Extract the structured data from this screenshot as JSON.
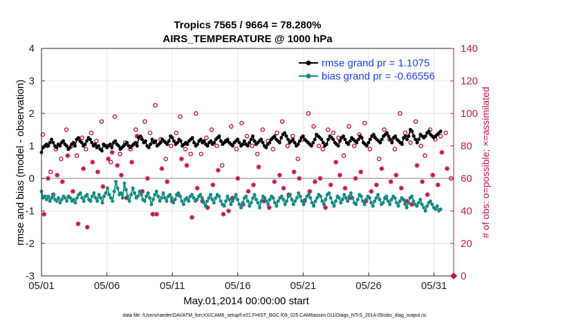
{
  "chart_data": {
    "type": "line",
    "title": "Tropics 7565 / 9664 = 78.280%",
    "subtitle": "AIRS_TEMPERATURE @ 1000 hPa",
    "xlabel": "May.01,2014 00:00:00 start",
    "ylabel": "rmse and bias (model - observation)",
    "ylabel_right": "# of obs: o=possible; ×=assimilated",
    "ylim": [
      -3,
      4
    ],
    "ylim_right": [
      0,
      140
    ],
    "xlim": [
      0,
      31.5
    ],
    "x_tick_labels": [
      "05/01",
      "05/06",
      "05/11",
      "05/16",
      "05/21",
      "05/26",
      "05/31"
    ],
    "x_tick_positions": [
      0,
      5,
      10,
      15,
      20,
      25,
      30
    ],
    "y_tick_labels": [
      "-3",
      "-2",
      "-1",
      "0",
      "1",
      "2",
      "3",
      "4"
    ],
    "y_ticks_right": [
      "0",
      "20",
      "40",
      "60",
      "80",
      "100",
      "120",
      "140"
    ],
    "grid": true,
    "legend_position": "top-right",
    "footnote": "data file: /Users/raeder/DAI/ATM_forcXX/CAM6_setup/f.e21.FHIST_BGC.f09_025.CAM6assim.011/Diags_NTrS_2014-05/obs_diag_output.nc",
    "colors": {
      "rmse": "#000000",
      "bias": "#138a80",
      "obs": "#c0134f",
      "legend_text": "#1f3fdc",
      "zero_line": "#999999"
    },
    "series": [
      {
        "name": "rmse grand pr = 1.1075",
        "style": "line-dot",
        "values": [
          0.8,
          0.95,
          1.0,
          1.05,
          1.0,
          1.1,
          1.2,
          1.1,
          1.0,
          0.95,
          1.05,
          1.0,
          1.1,
          1.15,
          1.05,
          1.0,
          0.9,
          0.95,
          1.05,
          1.1,
          1.0,
          1.2,
          1.25,
          1.15,
          1.1,
          1.0,
          1.05,
          1.15,
          1.25,
          1.2,
          1.1,
          1.0,
          1.05,
          0.95,
          1.0,
          0.9,
          0.85,
          1.05,
          1.0,
          0.95,
          1.0,
          1.05,
          0.95,
          1.1,
          1.15,
          1.05,
          1.0,
          0.9,
          0.95,
          1.0,
          1.05,
          1.1,
          1.0,
          0.95,
          1.0,
          1.05,
          1.1,
          1.0,
          1.25,
          1.3,
          1.2,
          1.1,
          1.15,
          1.0,
          0.95,
          1.05,
          1.2,
          1.1,
          1.15,
          1.0,
          1.05,
          1.1,
          1.2,
          1.15,
          1.1,
          1.05,
          1.15,
          1.3,
          1.25,
          1.15,
          1.05,
          1.1,
          1.2,
          1.15,
          1.0,
          1.05,
          1.1,
          1.05,
          1.15,
          1.2,
          1.25,
          1.1,
          1.0,
          1.05,
          1.15,
          1.2,
          1.1,
          1.15,
          1.05,
          1.0,
          1.1,
          1.15,
          1.05,
          1.1,
          1.2,
          1.25,
          1.3,
          1.15,
          1.05,
          1.1,
          1.15,
          1.2,
          1.1,
          1.05,
          1.0,
          1.1,
          1.15,
          1.2,
          1.1,
          1.0,
          1.05,
          1.15,
          1.05,
          1.0,
          1.1,
          1.2,
          1.3,
          1.15,
          1.05,
          1.1,
          1.15,
          1.2,
          1.1,
          1.0,
          0.95,
          1.05,
          1.1,
          1.2,
          1.25,
          1.3,
          1.2,
          1.15,
          1.1,
          1.25,
          1.35,
          1.4,
          1.3,
          1.2,
          1.1,
          1.15,
          1.2,
          1.1,
          1.0,
          1.05,
          1.15,
          1.25,
          1.3,
          1.2,
          1.15,
          1.1,
          1.05,
          1.0,
          1.1,
          1.2,
          1.35,
          1.3,
          1.25,
          1.2,
          1.1,
          1.0,
          1.05,
          1.2,
          1.3,
          1.25,
          1.2,
          1.1,
          1.05,
          1.0,
          1.15,
          1.25,
          1.3,
          1.2,
          1.1,
          1.05,
          1.15,
          1.25,
          1.2,
          1.15,
          1.1,
          1.2,
          1.3,
          1.25,
          1.1,
          1.05,
          1.0,
          1.1,
          1.2,
          1.3,
          1.35,
          1.25,
          1.2,
          1.15,
          1.1,
          1.2,
          1.3,
          1.35,
          1.4,
          1.3,
          1.2,
          1.1,
          1.25,
          1.3,
          1.2,
          1.15,
          1.1,
          1.05,
          1.25,
          1.3,
          1.2,
          1.3,
          1.5,
          1.45,
          1.3,
          1.2,
          1.1,
          1.2,
          1.35,
          1.3,
          1.25,
          1.3,
          1.4,
          1.45,
          1.35,
          1.3,
          1.25,
          1.3,
          1.35,
          1.4,
          1.45
        ]
      },
      {
        "name": "bias grand pr = -0.66556",
        "style": "line-dot",
        "values": [
          -0.4,
          -0.6,
          -0.55,
          -0.65,
          -0.55,
          -0.7,
          -0.6,
          -0.5,
          -0.65,
          -0.7,
          -0.6,
          -0.75,
          -0.65,
          -0.55,
          -0.6,
          -0.7,
          -0.55,
          -0.6,
          -0.7,
          -0.65,
          -0.75,
          -0.6,
          -0.5,
          -0.45,
          -0.6,
          -0.7,
          -0.55,
          -0.5,
          -0.65,
          -0.7,
          -0.55,
          -0.45,
          -0.6,
          -0.7,
          -0.5,
          -0.6,
          -0.75,
          -0.55,
          -0.45,
          -0.3,
          -0.5,
          -0.6,
          -0.7,
          -0.4,
          -0.1,
          -0.3,
          -0.5,
          -0.45,
          -0.6,
          -0.15,
          -0.35,
          -0.55,
          -0.7,
          -0.5,
          -0.3,
          -0.45,
          -0.6,
          -0.55,
          -0.4,
          -0.5,
          -0.65,
          -0.7,
          -0.55,
          -0.45,
          -0.6,
          -0.8,
          -0.65,
          -0.5,
          -0.4,
          -0.55,
          -0.7,
          -0.6,
          -0.45,
          -0.6,
          -0.7,
          -0.55,
          -0.5,
          -0.6,
          -0.75,
          -0.65,
          -0.5,
          -0.45,
          -0.55,
          -0.7,
          -0.8,
          -0.65,
          -0.6,
          -0.7,
          -0.55,
          -0.5,
          -0.6,
          -0.7,
          -0.65,
          -0.55,
          -0.5,
          -0.6,
          -0.75,
          -0.85,
          -0.7,
          -0.6,
          -0.5,
          -0.65,
          -0.75,
          -0.6,
          -0.5,
          -0.55,
          -0.7,
          -0.8,
          -0.85,
          -0.7,
          -0.55,
          -0.65,
          -0.8,
          -0.7,
          -0.6,
          -0.5,
          -0.65,
          -0.8,
          -0.9,
          -0.75,
          -0.6,
          -0.55,
          -0.7,
          -0.85,
          -0.75,
          -0.6,
          -0.5,
          -0.65,
          -0.75,
          -0.9,
          -0.7,
          -0.55,
          -0.6,
          -0.7,
          -0.8,
          -0.65,
          -0.55,
          -0.6,
          -0.75,
          -0.85,
          -0.7,
          -0.6,
          -0.55,
          -0.65,
          -0.8,
          -0.7,
          -0.55,
          -0.5,
          -0.65,
          -0.8,
          -0.7,
          -0.6,
          -0.45,
          -0.55,
          -0.7,
          -0.8,
          -0.65,
          -0.55,
          -0.5,
          -0.6,
          -0.75,
          -0.85,
          -0.7,
          -0.6,
          -0.5,
          -0.55,
          -0.7,
          -0.8,
          -0.65,
          -0.5,
          -0.45,
          -0.6,
          -0.75,
          -0.85,
          -0.7,
          -0.55,
          -0.6,
          -0.75,
          -0.65,
          -0.5,
          -0.6,
          -0.7,
          -0.55,
          -0.45,
          -0.6,
          -0.75,
          -0.8,
          -0.65,
          -0.5,
          -0.55,
          -0.7,
          -0.8,
          -0.65,
          -0.55,
          -0.6,
          -0.75,
          -0.85,
          -0.7,
          -0.6,
          -0.5,
          -0.65,
          -0.8,
          -0.75,
          -0.6,
          -0.55,
          -0.7,
          -0.8,
          -0.65,
          -0.55,
          -0.6,
          -0.75,
          -0.85,
          -0.7,
          -0.6,
          -0.65,
          -0.8,
          -0.9,
          -0.75,
          -0.6,
          -0.55,
          -0.7,
          -0.8,
          -0.85,
          -0.75,
          -0.65,
          -0.8,
          -0.9,
          -1.0,
          -0.85,
          -0.75,
          -0.7,
          -0.8,
          -0.9,
          -0.95,
          -0.85,
          -1.0,
          -0.95
        ]
      },
      {
        "name": "possible obs",
        "style": "circle",
        "axis": "right",
        "x": [
          0.1,
          0.4,
          0.7,
          1.1,
          1.5,
          1.9,
          2.3,
          2.7,
          3.1,
          3.4,
          3.8,
          4.2,
          4.6,
          5.0,
          5.3,
          5.6,
          6.0,
          6.4,
          6.8,
          7.2,
          7.6,
          7.9,
          8.3,
          8.7,
          9.1,
          9.5,
          9.9,
          10.3,
          10.6,
          11.0,
          11.4,
          11.8,
          12.2,
          12.6,
          13.0,
          13.4,
          13.8,
          14.1,
          14.5,
          14.9,
          15.3,
          15.7,
          16.1,
          16.5,
          16.9,
          17.3,
          17.7,
          18.0,
          18.4,
          18.8,
          19.2,
          19.6,
          20.0,
          20.4,
          20.8,
          21.2,
          21.5,
          21.9,
          22.3,
          22.7,
          23.1,
          23.5,
          23.9,
          24.3,
          24.7,
          25.1,
          25.4,
          25.8,
          26.2,
          26.6,
          27.0,
          27.4,
          27.8,
          28.2,
          28.6,
          29.0,
          29.3,
          29.7,
          30.1,
          30.5,
          30.9,
          31.3
        ],
        "values": [
          87,
          80,
          64,
          78,
          72,
          90,
          80,
          74,
          85,
          78,
          88,
          83,
          95,
          80,
          70,
          98,
          75,
          82,
          78,
          90,
          85,
          95,
          88,
          105,
          84,
          72,
          80,
          88,
          98,
          78,
          75,
          100,
          75,
          85,
          90,
          80,
          68,
          83,
          92,
          78,
          94,
          86,
          80,
          75,
          90,
          83,
          78,
          88,
          95,
          80,
          86,
          72,
          84,
          100,
          92,
          80,
          78,
          90,
          88,
          85,
          74,
          92,
          80,
          87,
          94,
          78,
          86,
          72,
          90,
          84,
          78,
          100,
          88,
          82,
          95,
          80,
          74,
          90,
          84,
          86,
          88,
          60
        ]
      },
      {
        "name": "assimilated obs",
        "style": "asterisk",
        "axis": "right",
        "x": [
          0.2,
          0.5,
          0.9,
          1.2,
          1.6,
          2.0,
          2.4,
          2.8,
          3.2,
          3.5,
          3.9,
          4.3,
          4.7,
          5.1,
          5.4,
          5.8,
          6.1,
          6.5,
          6.9,
          7.3,
          7.7,
          8.1,
          8.5,
          8.8,
          9.2,
          9.6,
          10.0,
          10.4,
          10.7,
          11.1,
          11.5,
          11.9,
          12.3,
          12.7,
          13.1,
          13.5,
          13.9,
          14.3,
          14.6,
          15.0,
          15.4,
          15.8,
          16.2,
          16.6,
          17.0,
          17.4,
          17.8,
          18.2,
          18.5,
          18.9,
          19.3,
          19.7,
          20.1,
          20.5,
          20.9,
          21.3,
          21.7,
          22.1,
          22.5,
          22.8,
          23.2,
          23.6,
          24.0,
          24.4,
          24.8,
          25.2,
          25.6,
          26.0,
          26.3,
          26.7,
          27.1,
          27.5,
          27.9,
          28.3,
          28.7,
          29.1,
          29.5,
          29.9,
          30.3,
          30.6,
          31.0
        ],
        "values": [
          38,
          60,
          50,
          62,
          58,
          74,
          52,
          32,
          66,
          30,
          70,
          64,
          55,
          72,
          76,
          68,
          62,
          48,
          70,
          86,
          52,
          60,
          38,
          38,
          66,
          58,
          46,
          50,
          72,
          68,
          36,
          54,
          46,
          42,
          56,
          65,
          38,
          40,
          48,
          60,
          44,
          52,
          56,
          67,
          46,
          42,
          58,
          62,
          54,
          50,
          64,
          60,
          46,
          52,
          58,
          60,
          42,
          56,
          70,
          62,
          54,
          48,
          60,
          64,
          46,
          52,
          56,
          66,
          48,
          58,
          62,
          54,
          46,
          44,
          68,
          58,
          50,
          62,
          56,
          76,
          66
        ]
      }
    ]
  }
}
